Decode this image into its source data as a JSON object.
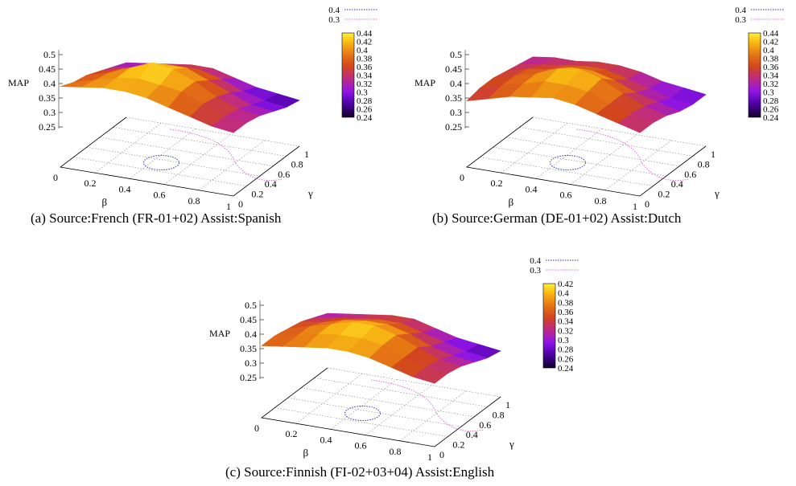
{
  "chart_data": [
    {
      "type": "surface3d",
      "caption": "(a) Source:French (FR-01+02) Assist:Spanish",
      "zlabel": "MAP",
      "xlabel": "β",
      "ylabel": "γ",
      "xticks": [
        "0",
        "0.2",
        "0.4",
        "0.6",
        "0.8",
        "1"
      ],
      "yticks": [
        "0",
        "0.2",
        "0.4",
        "0.6",
        "0.8",
        "1"
      ],
      "zticks": [
        "0.5",
        "0.45",
        "0.4",
        "0.35",
        "0.3",
        "0.25"
      ],
      "xlim": [
        0,
        1
      ],
      "ylim": [
        0,
        1
      ],
      "zlim": [
        0.25,
        0.5
      ],
      "colorbar": {
        "ticks": [
          "0.44",
          "0.42",
          "0.4",
          "0.38",
          "0.36",
          "0.34",
          "0.32",
          "0.3",
          "0.28",
          "0.26",
          "0.24"
        ],
        "range": [
          0.24,
          0.44
        ]
      },
      "contour_legend": [
        {
          "level": "0.4",
          "color": "#2f2fbf",
          "style": "dotted"
        },
        {
          "level": "0.3",
          "color": "#e070d0",
          "style": "dotted"
        }
      ],
      "surface_z": [
        [
          0.39,
          0.4,
          0.41,
          0.41,
          0.4,
          0.38,
          0.36,
          0.34,
          0.33
        ],
        [
          0.37,
          0.39,
          0.41,
          0.42,
          0.41,
          0.4,
          0.37,
          0.34,
          0.33
        ],
        [
          0.36,
          0.38,
          0.41,
          0.44,
          0.43,
          0.4,
          0.36,
          0.33,
          0.32
        ],
        [
          0.34,
          0.36,
          0.38,
          0.4,
          0.4,
          0.37,
          0.34,
          0.31,
          0.3
        ],
        [
          0.32,
          0.33,
          0.35,
          0.36,
          0.36,
          0.34,
          0.31,
          0.29,
          0.28
        ],
        [
          0.3,
          0.31,
          0.32,
          0.33,
          0.33,
          0.31,
          0.29,
          0.28,
          0.27
        ]
      ]
    },
    {
      "type": "surface3d",
      "caption": "(b) Source:German (DE-01+02) Assist:Dutch",
      "zlabel": "MAP",
      "xlabel": "β",
      "ylabel": "γ",
      "xticks": [
        "0",
        "0.2",
        "0.4",
        "0.6",
        "0.8",
        "1"
      ],
      "yticks": [
        "0",
        "0.2",
        "0.4",
        "0.6",
        "0.8",
        "1"
      ],
      "zticks": [
        "0.5",
        "0.45",
        "0.4",
        "0.35",
        "0.3",
        "0.25"
      ],
      "xlim": [
        0,
        1
      ],
      "ylim": [
        0,
        1
      ],
      "zlim": [
        0.25,
        0.5
      ],
      "colorbar": {
        "ticks": [
          "0.44",
          "0.42",
          "0.4",
          "0.38",
          "0.36",
          "0.34",
          "0.32",
          "0.3",
          "0.28",
          "0.26",
          "0.24"
        ],
        "range": [
          0.24,
          0.44
        ]
      },
      "contour_legend": [
        {
          "level": "0.4",
          "color": "#2f2fbf",
          "style": "dotted"
        },
        {
          "level": "0.3",
          "color": "#e070d0",
          "style": "dotted"
        }
      ],
      "surface_z": [
        [
          0.34,
          0.36,
          0.38,
          0.39,
          0.4,
          0.39,
          0.37,
          0.35,
          0.33
        ],
        [
          0.35,
          0.37,
          0.39,
          0.41,
          0.41,
          0.4,
          0.37,
          0.35,
          0.33
        ],
        [
          0.35,
          0.37,
          0.39,
          0.42,
          0.43,
          0.41,
          0.37,
          0.34,
          0.32
        ],
        [
          0.34,
          0.36,
          0.37,
          0.39,
          0.39,
          0.37,
          0.34,
          0.32,
          0.3
        ],
        [
          0.33,
          0.34,
          0.35,
          0.36,
          0.36,
          0.34,
          0.32,
          0.3,
          0.29
        ],
        [
          0.32,
          0.33,
          0.33,
          0.34,
          0.34,
          0.33,
          0.31,
          0.3,
          0.29
        ]
      ]
    },
    {
      "type": "surface3d",
      "caption": "(c) Source:Finnish (FI-02+03+04) Assist:English",
      "zlabel": "MAP",
      "xlabel": "β",
      "ylabel": "γ",
      "xticks": [
        "0",
        "0.2",
        "0.4",
        "0.6",
        "0.8",
        "1"
      ],
      "yticks": [
        "0",
        "0.2",
        "0.4",
        "0.6",
        "0.8",
        "1"
      ],
      "zticks": [
        "0.5",
        "0.45",
        "0.4",
        "0.35",
        "0.3",
        "0.25"
      ],
      "xlim": [
        0,
        1
      ],
      "ylim": [
        0,
        1
      ],
      "zlim": [
        0.25,
        0.5
      ],
      "colorbar": {
        "ticks": [
          "0.42",
          "0.4",
          "0.38",
          "0.36",
          "0.34",
          "0.32",
          "0.3",
          "0.28",
          "0.26",
          "0.24"
        ],
        "range": [
          0.24,
          0.42
        ]
      },
      "contour_legend": [
        {
          "level": "0.4",
          "color": "#2f2fbf",
          "style": "dotted"
        },
        {
          "level": "0.3",
          "color": "#e070d0",
          "style": "dotted"
        }
      ],
      "surface_z": [
        [
          0.36,
          0.37,
          0.38,
          0.39,
          0.39,
          0.38,
          0.36,
          0.34,
          0.33
        ],
        [
          0.36,
          0.37,
          0.39,
          0.4,
          0.4,
          0.39,
          0.36,
          0.34,
          0.33
        ],
        [
          0.35,
          0.37,
          0.39,
          0.41,
          0.41,
          0.39,
          0.36,
          0.33,
          0.32
        ],
        [
          0.34,
          0.35,
          0.37,
          0.38,
          0.38,
          0.36,
          0.33,
          0.31,
          0.3
        ],
        [
          0.32,
          0.33,
          0.34,
          0.35,
          0.35,
          0.33,
          0.31,
          0.29,
          0.28
        ],
        [
          0.3,
          0.31,
          0.32,
          0.33,
          0.33,
          0.31,
          0.29,
          0.28,
          0.27
        ]
      ]
    }
  ]
}
